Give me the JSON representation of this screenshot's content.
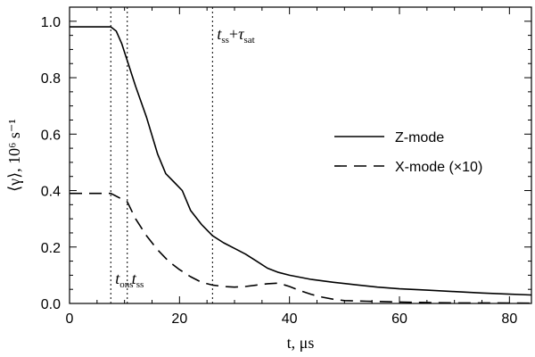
{
  "chart_data": {
    "type": "line",
    "xlabel": "t, μs",
    "ylabel": "⟨γ⟩, 10⁶ s⁻¹",
    "xlim": [
      0,
      84
    ],
    "ylim": [
      0,
      1.05
    ],
    "x_ticks": [
      0,
      20,
      40,
      60,
      80
    ],
    "x_tick_labels": [
      "0",
      "20",
      "40",
      "60",
      "80"
    ],
    "y_ticks": [
      0.0,
      0.2,
      0.4,
      0.6,
      0.8,
      1.0
    ],
    "y_tick_labels": [
      "0.0",
      "0.2",
      "0.4",
      "0.6",
      "0.8",
      "1.0"
    ],
    "legend_position": "center-right",
    "series": [
      {
        "name": "Z-mode",
        "style": "solid",
        "x": [
          0,
          7.5,
          8.5,
          9.5,
          10.5,
          12,
          14,
          16,
          17.5,
          19,
          20.5,
          22,
          24,
          26,
          28,
          30,
          32,
          34,
          36,
          38,
          40,
          44,
          48,
          52,
          56,
          60,
          65,
          70,
          75,
          80,
          84
        ],
        "y": [
          0.98,
          0.98,
          0.965,
          0.92,
          0.86,
          0.77,
          0.66,
          0.53,
          0.46,
          0.43,
          0.4,
          0.33,
          0.28,
          0.24,
          0.215,
          0.195,
          0.175,
          0.15,
          0.125,
          0.11,
          0.1,
          0.085,
          0.075,
          0.066,
          0.058,
          0.052,
          0.047,
          0.042,
          0.037,
          0.033,
          0.03
        ]
      },
      {
        "name": "X-mode (×10)",
        "style": "dashed",
        "x": [
          0,
          7.5,
          10.5,
          12,
          14,
          16,
          18,
          20,
          22,
          24,
          26,
          28,
          30,
          32,
          34,
          36,
          38,
          40,
          42,
          44,
          46,
          48,
          50,
          54,
          58,
          62,
          66,
          70,
          76,
          84
        ],
        "y": [
          0.39,
          0.39,
          0.36,
          0.3,
          0.24,
          0.19,
          0.15,
          0.12,
          0.095,
          0.075,
          0.065,
          0.06,
          0.058,
          0.06,
          0.065,
          0.07,
          0.072,
          0.06,
          0.045,
          0.032,
          0.022,
          0.015,
          0.01,
          0.008,
          0.006,
          0.004,
          0.003,
          0.002,
          0.002,
          0.001
        ]
      }
    ],
    "vertical_lines": [
      {
        "x": 7.5,
        "label_main": "t",
        "label_sub": "ons",
        "label_plus": "",
        "label_tau": "",
        "label_tau_sub": "",
        "label_y": 0.07
      },
      {
        "x": 10.5,
        "label_main": "t",
        "label_sub": "ss",
        "label_plus": "",
        "label_tau": "",
        "label_tau_sub": "",
        "label_y": 0.07
      },
      {
        "x": 26,
        "label_main": "t",
        "label_sub": "ss",
        "label_plus": "+",
        "label_tau": "τ",
        "label_tau_sub": "sat",
        "label_y": 1.0
      }
    ]
  }
}
